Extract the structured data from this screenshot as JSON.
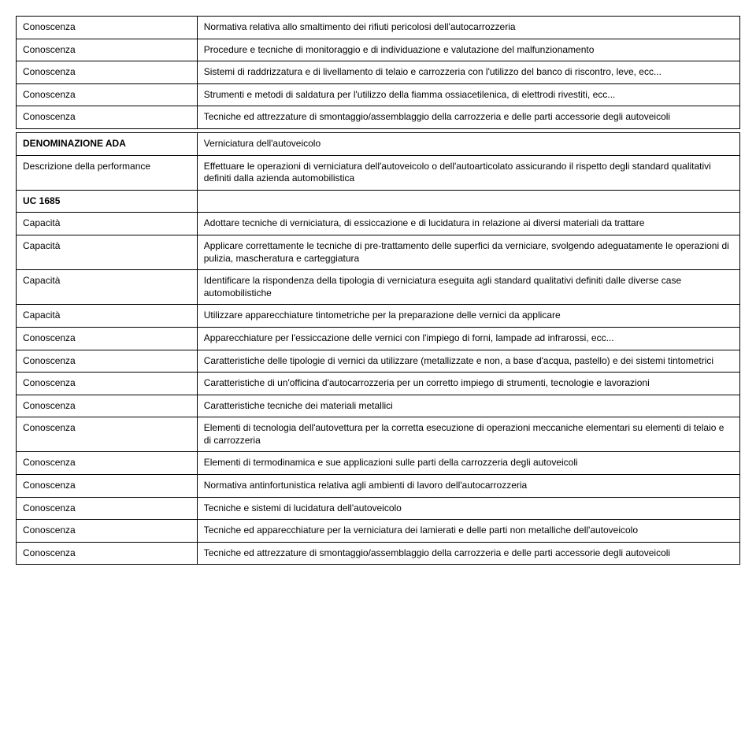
{
  "section1": {
    "rows": [
      {
        "label": "Conoscenza",
        "text": "Normativa relativa allo smaltimento dei rifiuti pericolosi dell'autocarrozzeria"
      },
      {
        "label": "Conoscenza",
        "text": "Procedure e tecniche di monitoraggio e di individuazione e valutazione del malfunzionamento"
      },
      {
        "label": "Conoscenza",
        "text": "Sistemi di raddrizzatura e di livellamento di telaio e carrozzeria con l'utilizzo del banco di riscontro, leve, ecc..."
      },
      {
        "label": "Conoscenza",
        "text": "Strumenti e metodi di saldatura per l'utilizzo della fiamma ossiacetilenica, di elettrodi rivestiti, ecc..."
      },
      {
        "label": "Conoscenza",
        "text": "Tecniche ed attrezzature di smontaggio/assemblaggio della carrozzeria e delle parti accessorie degli autoveicoli"
      }
    ]
  },
  "section2": {
    "header": {
      "leftLabel": "DENOMINAZIONE ADA",
      "rightText": "Verniciatura dell'autoveicolo",
      "descLabel": "Descrizione della performance",
      "descText": "Effettuare le operazioni di verniciatura dell'autoveicolo o dell'autoarticolato assicurando il rispetto degli standard qualitativi definiti dalla azienda automobilistica",
      "ucLabel": "UC 1685"
    },
    "rows": [
      {
        "label": "Capacità",
        "text": "Adottare tecniche di verniciatura, di essiccazione e di lucidatura in relazione ai diversi materiali da trattare"
      },
      {
        "label": "Capacità",
        "text": "Applicare correttamente le tecniche di pre-trattamento delle superfici da verniciare, svolgendo adeguatamente le operazioni di pulizia, mascheratura e carteggiatura"
      },
      {
        "label": "Capacità",
        "text": "Identificare la rispondenza della tipologia di verniciatura eseguita agli standard qualitativi definiti dalle diverse case automobilistiche"
      },
      {
        "label": "Capacità",
        "text": "Utilizzare apparecchiature tintometriche per la preparazione delle vernici da applicare"
      },
      {
        "label": "Conoscenza",
        "text": "Apparecchiature per l'essiccazione delle vernici con l'impiego di forni, lampade ad infrarossi, ecc..."
      },
      {
        "label": "Conoscenza",
        "text": "Caratteristiche delle tipologie di vernici da utilizzare (metallizzate e non, a base d'acqua, pastello) e dei sistemi tintometrici"
      },
      {
        "label": "Conoscenza",
        "text": "Caratteristiche di un'officina d'autocarrozzeria per un corretto impiego di strumenti, tecnologie e lavorazioni"
      },
      {
        "label": "Conoscenza",
        "text": "Caratteristiche tecniche dei materiali metallici"
      },
      {
        "label": "Conoscenza",
        "text": "Elementi di tecnologia dell'autovettura per la corretta esecuzione di operazioni meccaniche elementari su elementi di telaio e di carrozzeria"
      },
      {
        "label": "Conoscenza",
        "text": "Elementi di termodinamica e sue applicazioni sulle parti della carrozzeria degli autoveicoli"
      },
      {
        "label": "Conoscenza",
        "text": "Normativa antinfortunistica relativa agli ambienti di lavoro dell'autocarrozzeria"
      },
      {
        "label": "Conoscenza",
        "text": "Tecniche e sistemi di lucidatura dell'autoveicolo"
      },
      {
        "label": "Conoscenza",
        "text": "Tecniche ed apparecchiature per la verniciatura dei lamierati e delle parti non metalliche dell'autoveicolo"
      },
      {
        "label": "Conoscenza",
        "text": "Tecniche ed attrezzature di smontaggio/assemblaggio della carrozzeria e delle parti accessorie degli autoveicoli"
      }
    ]
  }
}
